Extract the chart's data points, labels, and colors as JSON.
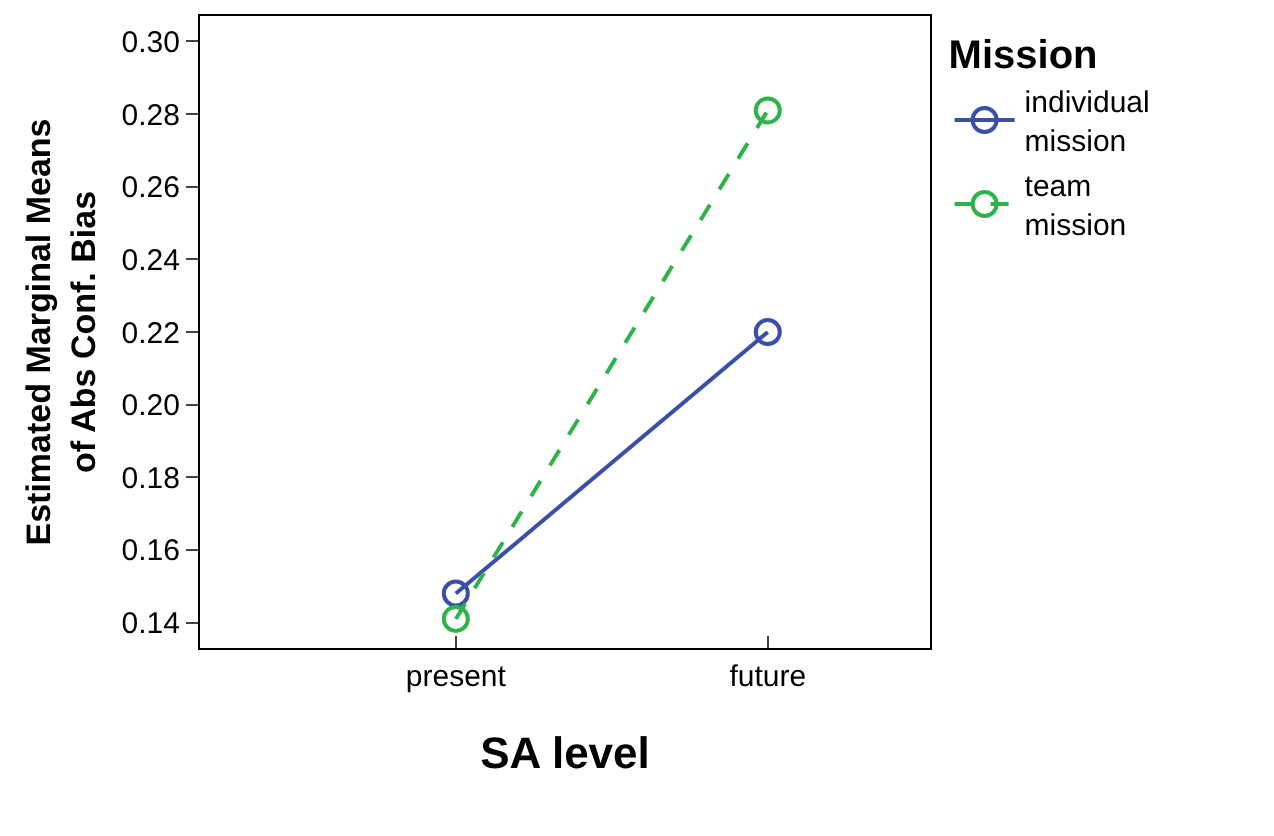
{
  "chart_data": {
    "type": "line",
    "xlabel": "SA level",
    "ylabel": "Estimated Marginal Means\nof Abs Conf. Bias",
    "legend_title": "Mission",
    "categories": [
      "present",
      "future"
    ],
    "series": [
      {
        "name": "individual mission",
        "color": "#3a4fa8",
        "values": [
          0.148,
          0.22
        ],
        "line_style": "solid"
      },
      {
        "name": "team mission",
        "color": "#2db34a",
        "values": [
          0.141,
          0.281
        ],
        "line_style": "dashed"
      }
    ],
    "ylim": [
      0.133,
      0.307
    ],
    "yticks": [
      0.14,
      0.16,
      0.18,
      {
        "value": 0.2,
        "label": "0.20"
      },
      0.22,
      0.24,
      0.26,
      0.28,
      {
        "value": 0.3,
        "label": "0.30"
      }
    ],
    "legend": "right",
    "marker": "circle"
  }
}
